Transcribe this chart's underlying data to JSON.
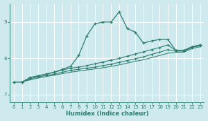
{
  "xlabel": "Humidex (Indice chaleur)",
  "ylabel": "",
  "bg_color": "#ceeaef",
  "grid_color": "#ffffff",
  "line_color": "#2e7d6e",
  "xlim": [
    -0.5,
    23.5
  ],
  "ylim": [
    6.8,
    9.5
  ],
  "yticks": [
    7,
    8,
    9
  ],
  "xticks": [
    0,
    1,
    2,
    3,
    4,
    5,
    6,
    7,
    8,
    9,
    10,
    11,
    12,
    13,
    14,
    15,
    16,
    17,
    18,
    19,
    20,
    21,
    22,
    23
  ],
  "series": [
    [
      7.35,
      7.35,
      7.47,
      7.52,
      7.57,
      7.62,
      7.7,
      7.78,
      8.08,
      8.62,
      8.95,
      9.0,
      9.0,
      9.28,
      8.82,
      8.72,
      8.42,
      8.48,
      8.52,
      8.52,
      8.22,
      8.22,
      8.32,
      8.37
    ],
    [
      7.35,
      7.35,
      7.47,
      7.52,
      7.57,
      7.62,
      7.68,
      7.73,
      7.76,
      7.8,
      7.85,
      7.9,
      7.95,
      8.0,
      8.06,
      8.12,
      8.18,
      8.24,
      8.3,
      8.37,
      8.22,
      8.22,
      8.32,
      8.37
    ],
    [
      7.35,
      7.35,
      7.44,
      7.49,
      7.53,
      7.57,
      7.62,
      7.67,
      7.7,
      7.73,
      7.76,
      7.8,
      7.84,
      7.89,
      7.94,
      7.99,
      8.04,
      8.11,
      8.17,
      8.24,
      8.2,
      8.2,
      8.3,
      8.35
    ],
    [
      7.35,
      7.35,
      7.41,
      7.46,
      7.5,
      7.54,
      7.58,
      7.62,
      7.65,
      7.68,
      7.71,
      7.74,
      7.78,
      7.82,
      7.87,
      7.92,
      7.96,
      8.02,
      8.08,
      8.14,
      8.17,
      8.17,
      8.27,
      8.32
    ]
  ]
}
